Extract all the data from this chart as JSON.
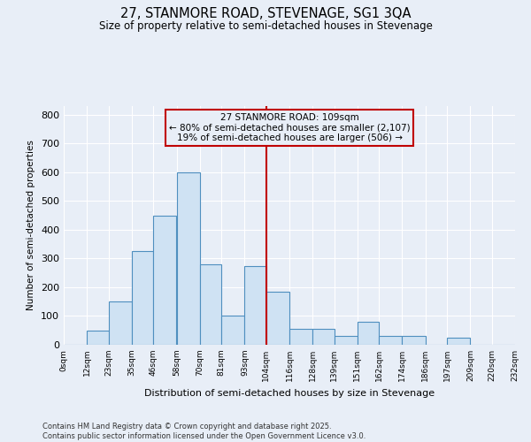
{
  "title_line1": "27, STANMORE ROAD, STEVENAGE, SG1 3QA",
  "title_line2": "Size of property relative to semi-detached houses in Stevenage",
  "xlabel": "Distribution of semi-detached houses by size in Stevenage",
  "ylabel": "Number of semi-detached properties",
  "bar_left_edges": [
    0,
    12,
    23,
    35,
    46,
    58,
    70,
    81,
    93,
    104,
    116,
    128,
    139,
    151,
    162,
    174,
    186,
    197,
    209,
    220
  ],
  "bar_widths": [
    12,
    11,
    12,
    11,
    12,
    12,
    11,
    12,
    11,
    12,
    12,
    11,
    12,
    11,
    12,
    12,
    11,
    12,
    11,
    12
  ],
  "bar_heights": [
    0,
    50,
    150,
    325,
    450,
    600,
    280,
    100,
    275,
    185,
    55,
    55,
    30,
    80,
    30,
    30,
    0,
    25,
    0,
    0
  ],
  "tick_labels": [
    "0sqm",
    "12sqm",
    "23sqm",
    "35sqm",
    "46sqm",
    "58sqm",
    "70sqm",
    "81sqm",
    "93sqm",
    "104sqm",
    "116sqm",
    "128sqm",
    "139sqm",
    "151sqm",
    "162sqm",
    "174sqm",
    "186sqm",
    "197sqm",
    "209sqm",
    "220sqm",
    "232sqm"
  ],
  "tick_positions": [
    0,
    12,
    23,
    35,
    46,
    58,
    70,
    81,
    93,
    104,
    116,
    128,
    139,
    151,
    162,
    174,
    186,
    197,
    209,
    220,
    232
  ],
  "bar_facecolor": "#cfe2f3",
  "bar_edgecolor": "#4f8fbf",
  "red_line_x": 104,
  "annotation_title": "27 STANMORE ROAD: 109sqm",
  "annotation_line2": "← 80% of semi-detached houses are smaller (2,107)",
  "annotation_line3": "19% of semi-detached houses are larger (506) →",
  "annotation_box_edgecolor": "#c00000",
  "ylim": [
    0,
    830
  ],
  "xlim": [
    0,
    232
  ],
  "yticks": [
    0,
    100,
    200,
    300,
    400,
    500,
    600,
    700,
    800
  ],
  "background_color": "#e8eef7",
  "grid_color": "#ffffff",
  "footer_line1": "Contains HM Land Registry data © Crown copyright and database right 2025.",
  "footer_line2": "Contains public sector information licensed under the Open Government Licence v3.0."
}
